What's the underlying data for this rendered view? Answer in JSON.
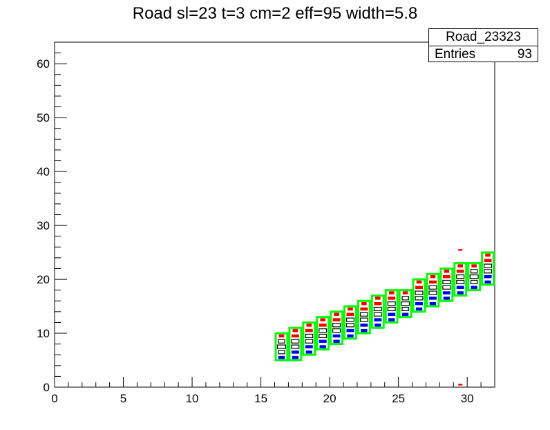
{
  "chart_data": {
    "type": "heatmap",
    "title": "Road sl=23 t=3 cm=2 eff=95 width=5.8",
    "xlabel": "",
    "ylabel": "",
    "xlim": [
      0,
      32
    ],
    "ylim": [
      0,
      64
    ],
    "x_ticks": [
      0,
      5,
      10,
      15,
      20,
      25,
      30
    ],
    "y_ticks": [
      0,
      10,
      20,
      30,
      40,
      50,
      60
    ],
    "stats_box": {
      "name": "Road_23323",
      "entries_label": "Entries",
      "entries_value": "93"
    },
    "colors": {
      "road_outline": "#00ff00",
      "upper_hits": "#ff0000",
      "lower_hits": "#0000ff",
      "center_hits": "#000000"
    },
    "road": [
      {
        "x": 16,
        "y_low": 5,
        "y_high": 10
      },
      {
        "x": 17,
        "y_low": 5,
        "y_high": 11
      },
      {
        "x": 18,
        "y_low": 6,
        "y_high": 12
      },
      {
        "x": 19,
        "y_low": 7,
        "y_high": 13
      },
      {
        "x": 20,
        "y_low": 8,
        "y_high": 14
      },
      {
        "x": 21,
        "y_low": 9,
        "y_high": 15
      },
      {
        "x": 22,
        "y_low": 10,
        "y_high": 16
      },
      {
        "x": 23,
        "y_low": 11,
        "y_high": 17
      },
      {
        "x": 24,
        "y_low": 12,
        "y_high": 18
      },
      {
        "x": 25,
        "y_low": 13,
        "y_high": 18
      },
      {
        "x": 26,
        "y_low": 14,
        "y_high": 20
      },
      {
        "x": 27,
        "y_low": 15,
        "y_high": 21
      },
      {
        "x": 28,
        "y_low": 16,
        "y_high": 22
      },
      {
        "x": 29,
        "y_low": 17,
        "y_high": 23
      },
      {
        "x": 30,
        "y_low": 18,
        "y_high": 23
      },
      {
        "x": 31,
        "y_low": 19,
        "y_high": 25
      }
    ],
    "outliers": [
      {
        "x": 29,
        "y": 25,
        "color": "red"
      },
      {
        "x": 29,
        "y": 0,
        "color": "red"
      }
    ]
  }
}
